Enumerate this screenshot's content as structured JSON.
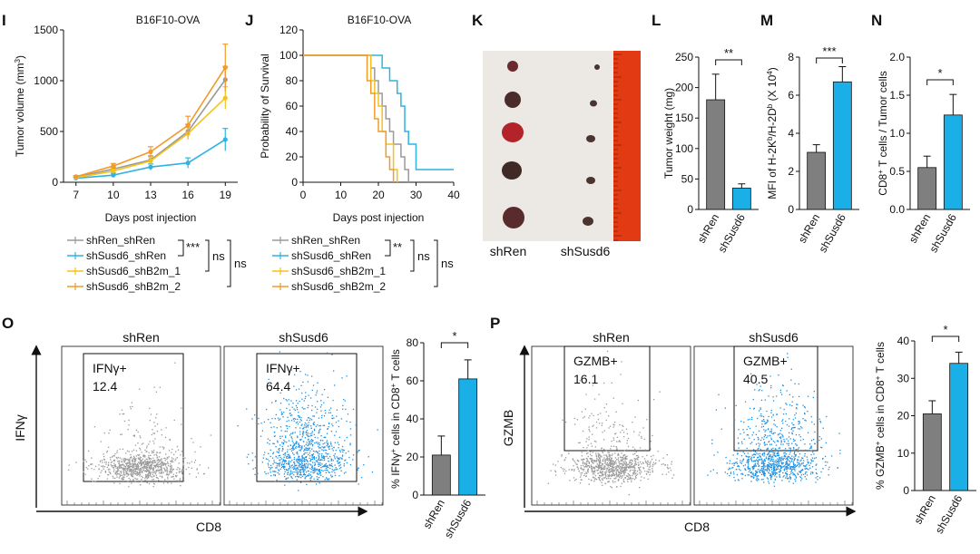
{
  "chart_data": [
    {
      "panel": "I",
      "type": "line",
      "title": "B16F10-OVA",
      "xlabel": "Days post injection",
      "ylabel_main": "Tumor volume (mm",
      "ylabel_sup": "3",
      "ylabel_end": ")",
      "x": [
        7,
        10,
        13,
        16,
        19
      ],
      "xlim": [
        6,
        20
      ],
      "ylim": [
        0,
        1500
      ],
      "xticks": [
        "7",
        "10",
        "13",
        "16",
        "19"
      ],
      "yticks": [
        "0",
        "500",
        "1000",
        "1500"
      ],
      "series": [
        {
          "name": "shRen_shRen",
          "color": "#9a9a9a",
          "values": [
            50,
            130,
            220,
            500,
            1010
          ],
          "err": [
            10,
            20,
            40,
            70,
            130
          ]
        },
        {
          "name": "shSusd6_shRen",
          "color": "#2fb3e3",
          "values": [
            40,
            70,
            150,
            190,
            420
          ],
          "err": [
            10,
            20,
            30,
            50,
            110
          ]
        },
        {
          "name": "shSusd6_shB2m_1",
          "color": "#f5c21a",
          "values": [
            45,
            110,
            210,
            480,
            830
          ],
          "err": [
            10,
            20,
            40,
            60,
            110
          ]
        },
        {
          "name": "shSusd6_shB2m_2",
          "color": "#f39a2b",
          "values": [
            55,
            160,
            300,
            560,
            1130
          ],
          "err": [
            10,
            25,
            50,
            90,
            230
          ]
        }
      ],
      "sig": [
        "***",
        "ns",
        "ns"
      ]
    },
    {
      "panel": "J",
      "type": "line",
      "title": "B16F10-OVA",
      "xlabel": "Days post injection",
      "ylabel": "Probability of Survival",
      "xlim": [
        0,
        40
      ],
      "ylim": [
        0,
        120
      ],
      "xticks": [
        "0",
        "10",
        "20",
        "30",
        "40"
      ],
      "yticks": [
        "0",
        "20",
        "40",
        "60",
        "80",
        "100",
        "120"
      ],
      "series": [
        {
          "name": "shRen_shRen",
          "color": "#9a9a9a",
          "steps": [
            [
              0,
              100
            ],
            [
              18,
              100
            ],
            [
              18,
              90
            ],
            [
              19,
              90
            ],
            [
              19,
              80
            ],
            [
              20,
              80
            ],
            [
              20,
              70
            ],
            [
              21,
              70
            ],
            [
              21,
              60
            ],
            [
              22,
              60
            ],
            [
              22,
              50
            ],
            [
              23,
              50
            ],
            [
              23,
              40
            ],
            [
              24,
              40
            ],
            [
              24,
              30
            ],
            [
              26,
              30
            ],
            [
              26,
              20
            ],
            [
              27,
              20
            ],
            [
              27,
              10
            ],
            [
              28,
              10
            ],
            [
              28,
              0
            ]
          ]
        },
        {
          "name": "shSusd6_shRen",
          "color": "#2fb3e3",
          "steps": [
            [
              0,
              100
            ],
            [
              21,
              100
            ],
            [
              21,
              90
            ],
            [
              23,
              90
            ],
            [
              23,
              80
            ],
            [
              25,
              80
            ],
            [
              25,
              70
            ],
            [
              26,
              70
            ],
            [
              26,
              60
            ],
            [
              27,
              60
            ],
            [
              27,
              40
            ],
            [
              28,
              40
            ],
            [
              28,
              30
            ],
            [
              30,
              30
            ],
            [
              30,
              10
            ],
            [
              40,
              10
            ]
          ]
        },
        {
          "name": "shSusd6_shB2m_1",
          "color": "#f5c21a",
          "steps": [
            [
              0,
              100
            ],
            [
              18,
              100
            ],
            [
              18,
              80
            ],
            [
              19,
              80
            ],
            [
              19,
              70
            ],
            [
              20,
              70
            ],
            [
              20,
              60
            ],
            [
              21,
              60
            ],
            [
              21,
              40
            ],
            [
              22,
              40
            ],
            [
              22,
              30
            ],
            [
              24,
              30
            ],
            [
              24,
              10
            ],
            [
              25,
              10
            ],
            [
              25,
              0
            ]
          ]
        },
        {
          "name": "shSusd6_shB2m_2",
          "color": "#f39a2b",
          "steps": [
            [
              0,
              100
            ],
            [
              17,
              100
            ],
            [
              17,
              80
            ],
            [
              18,
              80
            ],
            [
              18,
              70
            ],
            [
              19,
              70
            ],
            [
              19,
              50
            ],
            [
              20,
              50
            ],
            [
              20,
              40
            ],
            [
              22,
              40
            ],
            [
              22,
              20
            ],
            [
              23,
              20
            ],
            [
              23,
              10
            ],
            [
              24,
              10
            ],
            [
              24,
              0
            ]
          ]
        }
      ],
      "sig": [
        "**",
        "ns",
        "ns"
      ]
    },
    {
      "panel": "L",
      "type": "bar",
      "ylabel": "Tumor weight (mg)",
      "categories": [
        "shRen",
        "shSusd6"
      ],
      "values": [
        180,
        35
      ],
      "err": [
        42,
        7
      ],
      "colors": [
        "#7f7f7f",
        "#1aafe6"
      ],
      "ylim": [
        0,
        250
      ],
      "yticks": [
        "0",
        "50",
        "100",
        "150",
        "200",
        "250"
      ],
      "sig": "**"
    },
    {
      "panel": "M",
      "type": "bar",
      "ylabel_parts": [
        "MFI of H-2K",
        "b",
        "/H-2D",
        "b",
        " (X 10",
        "4",
        ")"
      ],
      "categories": [
        "shRen",
        "shSusd6"
      ],
      "values": [
        3.0,
        6.7
      ],
      "err": [
        0.4,
        0.8
      ],
      "colors": [
        "#7f7f7f",
        "#1aafe6"
      ],
      "ylim": [
        0,
        8
      ],
      "yticks": [
        "0",
        "2",
        "4",
        "6",
        "8"
      ],
      "sig": "***"
    },
    {
      "panel": "N",
      "type": "bar",
      "ylabel_parts": [
        "CD8",
        "+",
        " T cells / Tumor cells"
      ],
      "categories": [
        "shRen",
        "shSusd6"
      ],
      "values": [
        0.55,
        1.24
      ],
      "err": [
        0.15,
        0.27
      ],
      "colors": [
        "#7f7f7f",
        "#1aafe6"
      ],
      "ylim": [
        0,
        2.0
      ],
      "yticks": [
        "0.0",
        "0.5",
        "1.0",
        "1.5",
        "2.0"
      ],
      "sig": "*"
    },
    {
      "panel": "O",
      "type": "bar",
      "ylabel_parts": [
        "% IFNγ",
        "+",
        " cells in CD8",
        "+",
        " T cells"
      ],
      "categories": [
        "shRen",
        "shSusd6"
      ],
      "values": [
        21,
        61
      ],
      "err": [
        10,
        10
      ],
      "colors": [
        "#7f7f7f",
        "#1aafe6"
      ],
      "ylim": [
        0,
        80
      ],
      "yticks": [
        "0",
        "20",
        "40",
        "60",
        "80"
      ],
      "sig": "*"
    },
    {
      "panel": "P",
      "type": "bar",
      "ylabel_parts": [
        "% GZMB",
        "+",
        " cells in CD8",
        "+",
        " T cells"
      ],
      "categories": [
        "shRen",
        "shSusd6"
      ],
      "values": [
        20.5,
        34
      ],
      "err": [
        3.5,
        3
      ],
      "colors": [
        "#7f7f7f",
        "#1aafe6"
      ],
      "ylim": [
        0,
        40
      ],
      "yticks": [
        "0",
        "10",
        "20",
        "30",
        "40"
      ],
      "sig": "*"
    }
  ],
  "photo_K": {
    "panel": "K",
    "labels": [
      "shRen",
      "shSusd6"
    ]
  },
  "flow_O": {
    "panel": "O",
    "ylabel": "IFNγ",
    "xlabel": "CD8",
    "plots": [
      {
        "title": "shRen",
        "gate_label": "IFNγ+",
        "gate_value": "12.4",
        "color": "#9a9a9a"
      },
      {
        "title": "shSusd6",
        "gate_label": "IFNγ+",
        "gate_value": "64.4",
        "color": "#1e90e0"
      }
    ]
  },
  "flow_P": {
    "panel": "P",
    "ylabel": "GZMB",
    "xlabel": "CD8",
    "plots": [
      {
        "title": "shRen",
        "gate_label": "GZMB+",
        "gate_value": "16.1",
        "color": "#9a9a9a"
      },
      {
        "title": "shSusd6",
        "gate_label": "GZMB+",
        "gate_value": "40.5",
        "color": "#1e90e0"
      }
    ]
  }
}
